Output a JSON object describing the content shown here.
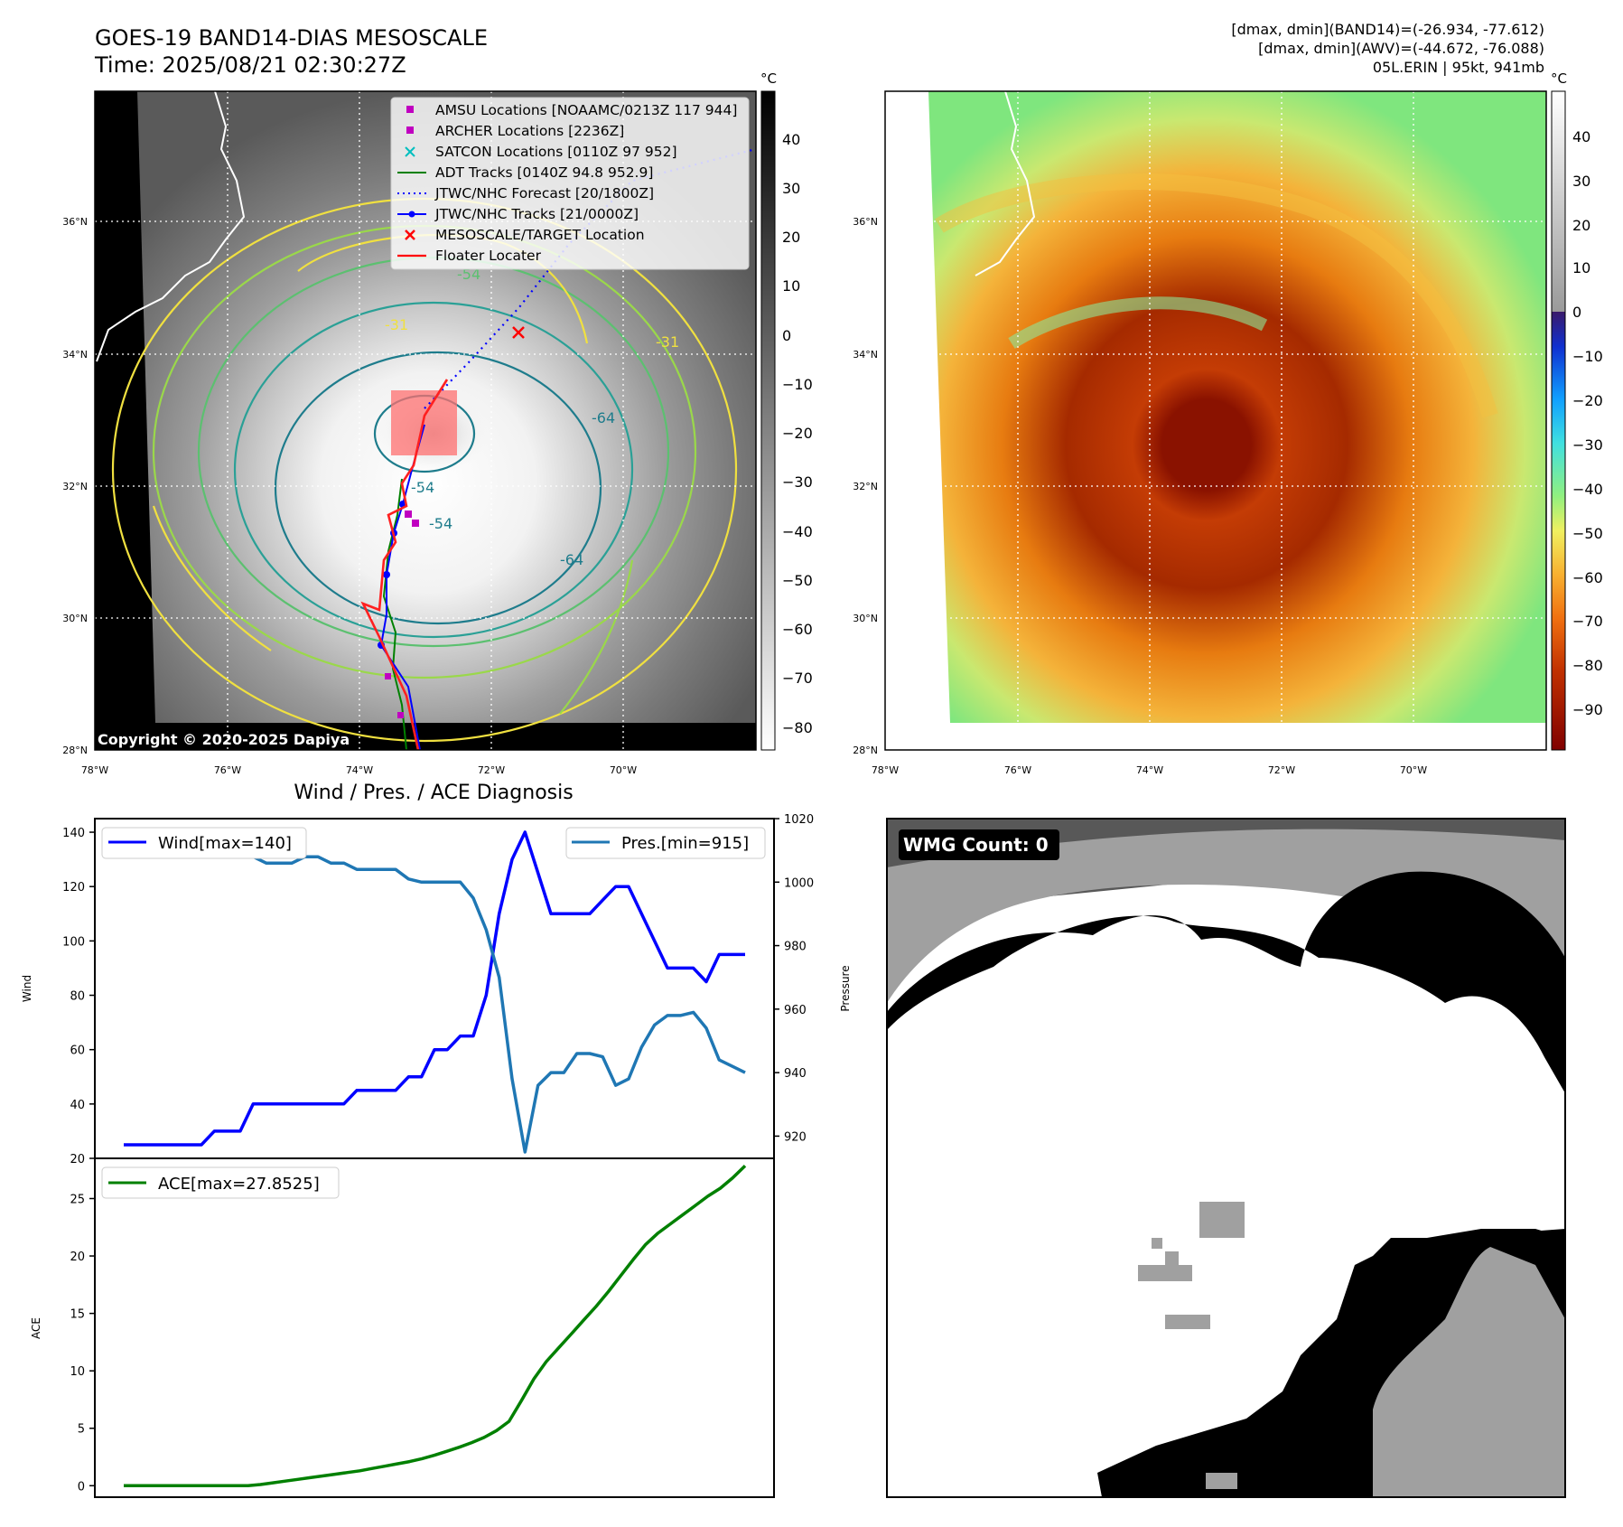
{
  "title": {
    "line1": "GOES-19 BAND14-DIAS MESOSCALE",
    "line2": "Time: 2025/08/21 02:30:27Z"
  },
  "info": {
    "line1": "[dmax, dmin](BAND14)=(-26.934, -77.612)",
    "line2": "[dmax, dmin](AWV)=(-44.672, -76.088)",
    "line3": "05L.ERIN | 95kt, 941mb"
  },
  "copyright": "Copyright © 2020-2025 Dapiya",
  "colorbar_unit": "°C",
  "map": {
    "lat_labels": [
      "36°N",
      "34°N",
      "32°N",
      "30°N",
      "28°N"
    ],
    "lon_labels": [
      "78°W",
      "76°W",
      "74°W",
      "72°W",
      "70°W"
    ],
    "contour_labels": [
      "-54",
      "-31",
      "-31",
      "-64",
      "-54",
      "-54",
      "-64"
    ]
  },
  "colorbar_left_ticks": [
    "40",
    "30",
    "20",
    "10",
    "0",
    "−10",
    "−20",
    "−30",
    "−40",
    "−50",
    "−60",
    "−70",
    "−80"
  ],
  "colorbar_right_ticks": [
    "40",
    "30",
    "20",
    "10",
    "0",
    "−10",
    "−20",
    "−30",
    "−40",
    "−50",
    "−60",
    "−70",
    "−80",
    "−90"
  ],
  "legend": [
    {
      "label": "AMSU Locations [NOAAMC/0213Z 117 944]",
      "marker": "square",
      "color": "#c000c0"
    },
    {
      "label": "ARCHER Locations [2236Z]",
      "marker": "square",
      "color": "#c000c0"
    },
    {
      "label": "SATCON Locations [0110Z 97 952]",
      "marker": "x",
      "color": "#00bfbf"
    },
    {
      "label": "ADT Tracks [0140Z 94.8 952.9]",
      "marker": "line",
      "color": "#008000"
    },
    {
      "label": "JTWC/NHC Forecast [20/1800Z]",
      "marker": "dotted",
      "color": "#0000ff"
    },
    {
      "label": "JTWC/NHC Tracks [21/0000Z]",
      "marker": "line-dot",
      "color": "#0000ff"
    },
    {
      "label": "MESOSCALE/TARGET Location",
      "marker": "x",
      "color": "#ff0000"
    },
    {
      "label": "Floater Locater",
      "marker": "line",
      "color": "#ff0000"
    }
  ],
  "wmg_label": "WMG Count: 0",
  "colors": {
    "wind": "#0000ff",
    "pressure": "#1f77b4",
    "ace": "#008000"
  },
  "chart_data": [
    {
      "type": "line",
      "title": "Wind / Pres. / ACE Diagnosis",
      "ylabel": "Wind",
      "y2label": "Pressure",
      "ylim": [
        20,
        145
      ],
      "y2lim": [
        913,
        1020
      ],
      "yticks": [
        20,
        40,
        60,
        80,
        100,
        120,
        140
      ],
      "y2ticks": [
        920,
        940,
        960,
        980,
        1000,
        1020
      ],
      "series": [
        {
          "name": "Wind[max=140]",
          "axis": "left",
          "values": [
            25,
            25,
            25,
            25,
            25,
            25,
            25,
            30,
            30,
            30,
            40,
            40,
            40,
            40,
            40,
            40,
            40,
            40,
            45,
            45,
            45,
            45,
            50,
            50,
            60,
            60,
            65,
            65,
            80,
            110,
            130,
            140,
            125,
            110,
            110,
            110,
            110,
            115,
            120,
            120,
            110,
            100,
            90,
            90,
            90,
            85,
            95,
            95,
            95
          ]
        },
        {
          "name": "Pres.[min=915]",
          "axis": "right",
          "values": [
            1015,
            1015,
            1010,
            1009,
            1008,
            1008,
            1008,
            1008,
            1008,
            1008,
            1008,
            1006,
            1006,
            1006,
            1008,
            1008,
            1006,
            1006,
            1004,
            1004,
            1004,
            1004,
            1001,
            1000,
            1000,
            1000,
            1000,
            995,
            985,
            970,
            938,
            915,
            936,
            940,
            940,
            946,
            946,
            945,
            936,
            938,
            948,
            955,
            958,
            958,
            959,
            954,
            944,
            942,
            940
          ]
        }
      ]
    },
    {
      "type": "line",
      "ylabel": "ACE",
      "ylim": [
        -1,
        28.5
      ],
      "yticks": [
        0,
        5,
        10,
        15,
        20,
        25
      ],
      "series": [
        {
          "name": "ACE[max=27.8525]",
          "values": [
            0,
            0,
            0,
            0,
            0,
            0,
            0,
            0,
            0,
            0,
            0,
            0.1,
            0.25,
            0.4,
            0.55,
            0.7,
            0.85,
            1.0,
            1.15,
            1.3,
            1.5,
            1.7,
            1.9,
            2.1,
            2.35,
            2.65,
            3.0,
            3.35,
            3.75,
            4.2,
            4.8,
            5.6,
            7.4,
            9.3,
            10.8,
            12.0,
            13.2,
            14.4,
            15.6,
            16.9,
            18.3,
            19.7,
            21.0,
            22.0,
            22.8,
            23.6,
            24.4,
            25.2,
            25.9,
            26.8,
            27.85
          ]
        }
      ]
    }
  ]
}
